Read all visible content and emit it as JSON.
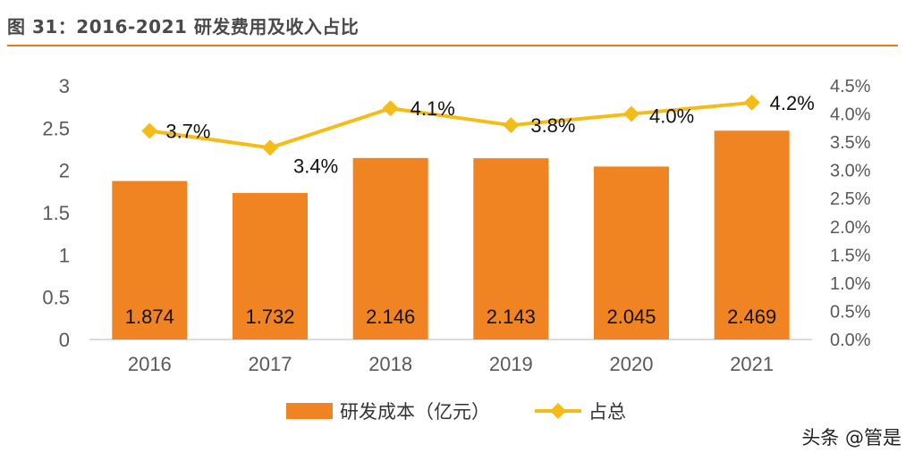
{
  "figure_title": "图 31：2016-2021 研发费用及收入占比",
  "watermark": "头条 @管是",
  "colors": {
    "bar": "#F08423",
    "line": "#F5BC18",
    "rule": "#E07A1F"
  },
  "chart_data": {
    "type": "bar+line",
    "title": "图 31：2016-2021 研发费用及收入占比",
    "categories": [
      "2016",
      "2017",
      "2018",
      "2019",
      "2020",
      "2021"
    ],
    "series": [
      {
        "name": "研发成本（亿元）",
        "type": "bar",
        "axis": "left",
        "values": [
          1.874,
          1.732,
          2.146,
          2.143,
          2.045,
          2.469
        ],
        "labels": [
          "1.874",
          "1.732",
          "2.146",
          "2.143",
          "2.045",
          "2.469"
        ]
      },
      {
        "name": "占总",
        "type": "line",
        "axis": "right",
        "values": [
          3.7,
          3.4,
          4.1,
          3.8,
          4.0,
          4.2
        ],
        "labels": [
          "3.7%",
          "3.4%",
          "4.1%",
          "3.8%",
          "4.0%",
          "4.2%"
        ]
      }
    ],
    "y_left": {
      "ylim": [
        0,
        3
      ],
      "ticks": [
        "0",
        "0.5",
        "1",
        "1.5",
        "2",
        "2.5",
        "3"
      ]
    },
    "y_right": {
      "ylim": [
        0,
        4.5
      ],
      "ticks": [
        "0.0%",
        "0.5%",
        "1.0%",
        "1.5%",
        "2.0%",
        "2.5%",
        "3.0%",
        "3.5%",
        "4.0%",
        "4.5%"
      ]
    },
    "grid": false,
    "legend": "bottom"
  }
}
